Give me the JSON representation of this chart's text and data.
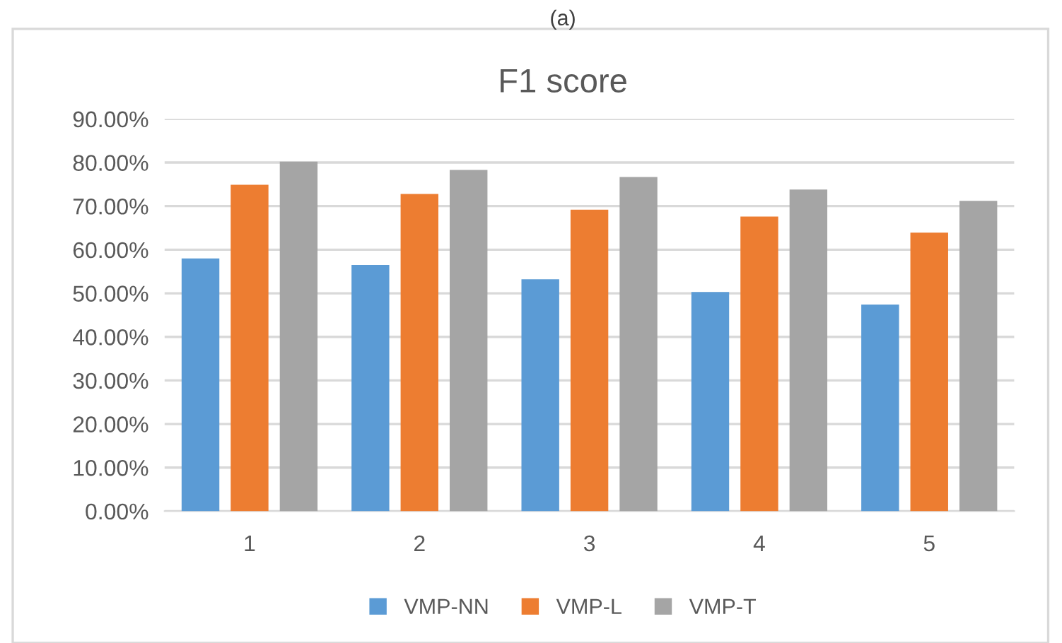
{
  "chart_data": {
    "type": "bar",
    "title": "F1 score",
    "annotations": [
      "(a)"
    ],
    "categories": [
      "1",
      "2",
      "3",
      "4",
      "5"
    ],
    "series": [
      {
        "name": "VMP-NN",
        "color": "#5b9bd5",
        "values": [
          58.0,
          56.5,
          53.2,
          50.3,
          47.4
        ]
      },
      {
        "name": "VMP-L",
        "color": "#ed7d31",
        "values": [
          74.9,
          72.8,
          69.2,
          67.6,
          63.9
        ]
      },
      {
        "name": "VMP-T",
        "color": "#a5a5a5",
        "values": [
          80.2,
          78.3,
          76.7,
          73.8,
          71.2
        ]
      }
    ],
    "ylim": [
      0,
      90
    ],
    "yticks": [
      {
        "value": 0,
        "label": "0.00%"
      },
      {
        "value": 10,
        "label": "10.00%"
      },
      {
        "value": 20,
        "label": "20.00%"
      },
      {
        "value": 30,
        "label": "30.00%"
      },
      {
        "value": 40,
        "label": "40.00%"
      },
      {
        "value": 50,
        "label": "50.00%"
      },
      {
        "value": 60,
        "label": "60.00%"
      },
      {
        "value": 70,
        "label": "70.00%"
      },
      {
        "value": 80,
        "label": "80.00%"
      },
      {
        "value": 90,
        "label": "90.00%"
      }
    ],
    "grid": "y",
    "legend": "bottom"
  }
}
